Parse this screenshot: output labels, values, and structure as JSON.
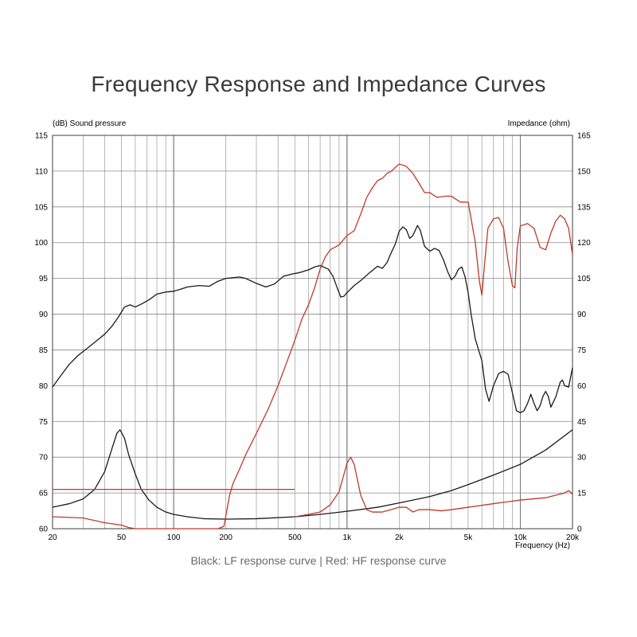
{
  "title": "Frequency Response and Impedance Curves",
  "caption": "Black: LF response curve | Red: HF response curve",
  "chart_data": {
    "type": "line",
    "x_scale": "log",
    "xlim": [
      20,
      20000
    ],
    "ylim": [
      60,
      115
    ],
    "y2lim": [
      0,
      165
    ],
    "left_axis_label": "(dB) Sound pressure",
    "right_axis_label": "Impedance  (ohm)",
    "x_axis_label": "Frequency  (Hz)",
    "x_tick_labels": [
      {
        "x": 20,
        "label": "20"
      },
      {
        "x": 50,
        "label": "50"
      },
      {
        "x": 100,
        "label": "100"
      },
      {
        "x": 200,
        "label": "200"
      },
      {
        "x": 500,
        "label": "500"
      },
      {
        "x": 1000,
        "label": "1k"
      },
      {
        "x": 2000,
        "label": "2k"
      },
      {
        "x": 5000,
        "label": "5k"
      },
      {
        "x": 10000,
        "label": "10k"
      },
      {
        "x": 20000,
        "label": "20k"
      }
    ],
    "y_ticks": [
      60,
      65,
      70,
      75,
      80,
      85,
      90,
      95,
      100,
      105,
      110,
      115
    ],
    "y2_ticks": [
      0,
      15,
      30,
      45,
      60,
      75,
      90,
      105,
      120,
      135,
      150,
      165
    ],
    "colors": {
      "lf": "#1a1a1a",
      "hf": "#c0392b",
      "grid": "#9a9a9a"
    },
    "series": [
      {
        "color": "#1a1a1a",
        "axis": "left",
        "points": [
          [
            20,
            79.8
          ],
          [
            22,
            81.2
          ],
          [
            25,
            83
          ],
          [
            28,
            84.2
          ],
          [
            32,
            85.3
          ],
          [
            36,
            86.3
          ],
          [
            40,
            87.2
          ],
          [
            44,
            88.3
          ],
          [
            48,
            89.6
          ],
          [
            52,
            91
          ],
          [
            56,
            91.3
          ],
          [
            60,
            91
          ],
          [
            65,
            91.4
          ],
          [
            72,
            92
          ],
          [
            80,
            92.8
          ],
          [
            90,
            93.1
          ],
          [
            100,
            93.2
          ],
          [
            110,
            93.5
          ],
          [
            120,
            93.8
          ],
          [
            140,
            94
          ],
          [
            160,
            93.9
          ],
          [
            180,
            94.6
          ],
          [
            200,
            95
          ],
          [
            240,
            95.2
          ],
          [
            260,
            95
          ],
          [
            300,
            94.3
          ],
          [
            340,
            93.8
          ],
          [
            380,
            94.2
          ],
          [
            430,
            95.3
          ],
          [
            480,
            95.6
          ],
          [
            530,
            95.8
          ],
          [
            600,
            96.2
          ],
          [
            650,
            96.6
          ],
          [
            700,
            96.8
          ],
          [
            780,
            96.3
          ],
          [
            830,
            95.3
          ],
          [
            880,
            93.6
          ],
          [
            920,
            92.4
          ],
          [
            960,
            92.5
          ],
          [
            1000,
            93
          ],
          [
            1100,
            94
          ],
          [
            1200,
            94.7
          ],
          [
            1350,
            95.8
          ],
          [
            1500,
            96.7
          ],
          [
            1600,
            96.4
          ],
          [
            1700,
            97.2
          ],
          [
            1800,
            98.6
          ],
          [
            1900,
            99.8
          ],
          [
            2000,
            101.6
          ],
          [
            2100,
            102.2
          ],
          [
            2200,
            101.8
          ],
          [
            2300,
            100.6
          ],
          [
            2400,
            101
          ],
          [
            2550,
            102.4
          ],
          [
            2650,
            101.7
          ],
          [
            2800,
            99.5
          ],
          [
            3000,
            98.8
          ],
          [
            3200,
            99.2
          ],
          [
            3400,
            98.9
          ],
          [
            3600,
            97.6
          ],
          [
            3800,
            96
          ],
          [
            4000,
            94.8
          ],
          [
            4200,
            95.3
          ],
          [
            4400,
            96.3
          ],
          [
            4600,
            96.6
          ],
          [
            4800,
            95.2
          ],
          [
            5000,
            93
          ],
          [
            5200,
            90
          ],
          [
            5500,
            86.5
          ],
          [
            6000,
            83.5
          ],
          [
            6300,
            79.5
          ],
          [
            6600,
            77.8
          ],
          [
            7000,
            80
          ],
          [
            7500,
            81.7
          ],
          [
            8000,
            82
          ],
          [
            8500,
            81.6
          ],
          [
            9000,
            79
          ],
          [
            9500,
            76.5
          ],
          [
            10000,
            76.2
          ],
          [
            10500,
            76.5
          ],
          [
            11000,
            77.5
          ],
          [
            11500,
            78.8
          ],
          [
            12000,
            77.5
          ],
          [
            12500,
            76.5
          ],
          [
            13000,
            77.2
          ],
          [
            13500,
            78.5
          ],
          [
            14000,
            79.2
          ],
          [
            14500,
            78.5
          ],
          [
            15000,
            77
          ],
          [
            16000,
            78.4
          ],
          [
            17000,
            80.5
          ],
          [
            17500,
            80.8
          ],
          [
            18000,
            80
          ],
          [
            19000,
            79.8
          ],
          [
            20000,
            82.5
          ]
        ]
      },
      {
        "color": "#1a1a1a",
        "axis": "right",
        "points": [
          [
            20,
            9
          ],
          [
            25,
            10.5
          ],
          [
            30,
            12.5
          ],
          [
            35,
            16.5
          ],
          [
            40,
            24
          ],
          [
            44,
            33.5
          ],
          [
            47,
            40
          ],
          [
            49,
            41.5
          ],
          [
            52,
            38
          ],
          [
            55,
            31
          ],
          [
            60,
            23
          ],
          [
            65,
            16.5
          ],
          [
            72,
            12
          ],
          [
            80,
            9
          ],
          [
            90,
            7
          ],
          [
            100,
            6
          ],
          [
            120,
            5
          ],
          [
            150,
            4.2
          ],
          [
            200,
            4
          ],
          [
            300,
            4.2
          ],
          [
            500,
            5
          ],
          [
            700,
            6
          ],
          [
            1000,
            7.3
          ],
          [
            1500,
            9
          ],
          [
            2000,
            10.8
          ],
          [
            3000,
            13.5
          ],
          [
            4000,
            16
          ],
          [
            5000,
            18.5
          ],
          [
            7000,
            22.5
          ],
          [
            10000,
            27
          ],
          [
            14000,
            33
          ],
          [
            20000,
            41.5
          ]
        ]
      },
      {
        "color": "#c0392b",
        "axis": "right",
        "points": [
          [
            20,
            5
          ],
          [
            30,
            4.5
          ],
          [
            40,
            2.5
          ],
          [
            50,
            1.5
          ],
          [
            55,
            0.5
          ],
          [
            60,
            0
          ],
          [
            100,
            0
          ],
          [
            180,
            0
          ],
          [
            195,
            1
          ],
          [
            210,
            14
          ],
          [
            220,
            19
          ],
          [
            240,
            25
          ],
          [
            260,
            31
          ],
          [
            300,
            40
          ],
          [
            350,
            50
          ],
          [
            400,
            60
          ],
          [
            450,
            70
          ],
          [
            500,
            79
          ],
          [
            550,
            88
          ],
          [
            600,
            94
          ],
          [
            650,
            101
          ],
          [
            700,
            109
          ],
          [
            750,
            114
          ],
          [
            800,
            117
          ],
          [
            900,
            119
          ],
          [
            1000,
            123
          ],
          [
            1100,
            125
          ],
          [
            1200,
            132
          ],
          [
            1300,
            139
          ],
          [
            1400,
            143
          ],
          [
            1500,
            146
          ],
          [
            1600,
            147
          ],
          [
            1700,
            149
          ],
          [
            1800,
            150
          ],
          [
            2000,
            153
          ],
          [
            2200,
            152
          ],
          [
            2400,
            149
          ],
          [
            2600,
            145
          ],
          [
            2800,
            141
          ],
          [
            3000,
            141
          ],
          [
            3300,
            139
          ],
          [
            3700,
            139.5
          ],
          [
            4000,
            139.5
          ],
          [
            4500,
            137
          ],
          [
            5000,
            137
          ],
          [
            5200,
            130
          ],
          [
            5500,
            120
          ],
          [
            5800,
            104
          ],
          [
            6000,
            98
          ],
          [
            6200,
            110
          ],
          [
            6500,
            126
          ],
          [
            7000,
            130
          ],
          [
            7500,
            130.5
          ],
          [
            8000,
            126
          ],
          [
            8500,
            112
          ],
          [
            9000,
            102
          ],
          [
            9300,
            101
          ],
          [
            9600,
            118
          ],
          [
            10000,
            127
          ],
          [
            11000,
            128
          ],
          [
            12000,
            126
          ],
          [
            13000,
            118
          ],
          [
            14000,
            117
          ],
          [
            15000,
            124
          ],
          [
            16000,
            129
          ],
          [
            17000,
            131.5
          ],
          [
            18000,
            130
          ],
          [
            19000,
            126
          ],
          [
            20000,
            115
          ]
        ]
      },
      {
        "color": "#c0392b",
        "axis": "left",
        "points": [
          [
            20,
            65.5
          ],
          [
            30,
            65.5
          ],
          [
            50,
            65.5
          ],
          [
            100,
            65.5
          ],
          [
            200,
            65.5
          ],
          [
            300,
            65.5
          ],
          [
            500,
            65.5
          ]
        ]
      },
      {
        "color": "#c0392b",
        "axis": "right",
        "points": [
          [
            500,
            5
          ],
          [
            600,
            6
          ],
          [
            700,
            7
          ],
          [
            800,
            10
          ],
          [
            900,
            15.5
          ],
          [
            1000,
            27.5
          ],
          [
            1050,
            30
          ],
          [
            1100,
            27
          ],
          [
            1200,
            14
          ],
          [
            1300,
            8
          ],
          [
            1400,
            7
          ],
          [
            1600,
            7
          ],
          [
            1800,
            8
          ],
          [
            2000,
            9
          ],
          [
            2200,
            9
          ],
          [
            2400,
            7
          ],
          [
            2600,
            8
          ],
          [
            3000,
            8
          ],
          [
            3500,
            7.5
          ],
          [
            4000,
            8
          ],
          [
            5000,
            9
          ],
          [
            7000,
            10.5
          ],
          [
            10000,
            12
          ],
          [
            14000,
            13
          ],
          [
            18000,
            15
          ],
          [
            19000,
            16
          ],
          [
            20000,
            14.5
          ]
        ]
      }
    ]
  }
}
